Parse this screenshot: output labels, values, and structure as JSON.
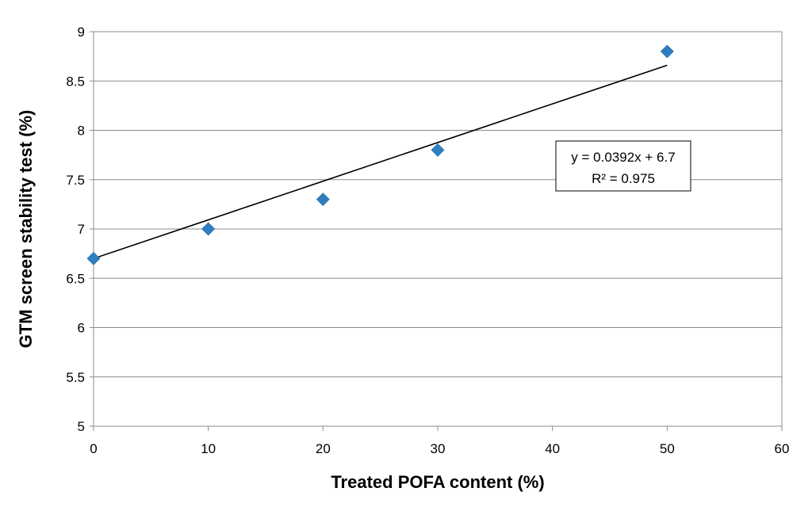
{
  "chart_data": {
    "type": "scatter",
    "title": "",
    "xlabel": "Treated POFA content (%)",
    "ylabel": "GTM screen stability test  (%)",
    "xlim": [
      0,
      60
    ],
    "ylim": [
      5,
      9
    ],
    "xticks": [
      0,
      10,
      20,
      30,
      40,
      50,
      60
    ],
    "yticks": [
      5,
      5.5,
      6,
      6.5,
      7,
      7.5,
      8,
      8.5,
      9
    ],
    "xtick_labels": [
      "0",
      "10",
      "20",
      "30",
      "40",
      "50",
      "60"
    ],
    "ytick_labels": [
      "5",
      "5.5",
      "6",
      "6.5",
      "7",
      "7.5",
      "8",
      "8.5",
      "9"
    ],
    "grid": "horizontal",
    "series": [
      {
        "name": "GTM screen stability",
        "marker": "diamond",
        "color": "#2E7EC1",
        "x": [
          0,
          10,
          20,
          30,
          50
        ],
        "y": [
          6.7,
          7.0,
          7.3,
          7.8,
          8.8
        ]
      }
    ],
    "trendline": {
      "type": "linear",
      "slope": 0.0392,
      "intercept": 6.7,
      "x_range": [
        0,
        50
      ],
      "color": "#000000"
    },
    "annotations": {
      "equation": "y = 0.0392x + 6.7",
      "r_squared": "R² = 0.975"
    }
  }
}
